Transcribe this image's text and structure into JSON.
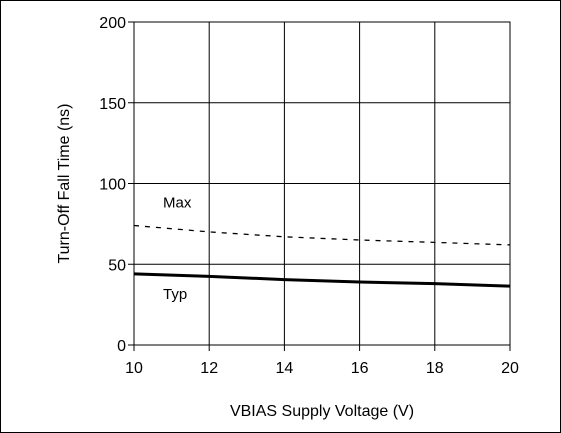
{
  "chart_data": {
    "type": "line",
    "title": "",
    "xlabel": "VBIAS Supply Voltage (V)",
    "ylabel": "Turn-Off Fall Time (ns)",
    "xlim": [
      10,
      20
    ],
    "ylim": [
      0,
      200
    ],
    "x_ticks": [
      "10",
      "12",
      "14",
      "16",
      "18",
      "20"
    ],
    "y_ticks": [
      "0",
      "50",
      "100",
      "150",
      "200"
    ],
    "grid": true,
    "series": [
      {
        "name": "Max",
        "style": "dashed",
        "x": [
          10,
          12,
          14,
          16,
          18,
          20
        ],
        "y": [
          74,
          70,
          67,
          65,
          63.5,
          62
        ]
      },
      {
        "name": "Typ",
        "style": "solid",
        "x": [
          10,
          12,
          14,
          16,
          18,
          20
        ],
        "y": [
          44,
          42.5,
          40.5,
          39,
          38,
          36.5
        ]
      }
    ]
  }
}
